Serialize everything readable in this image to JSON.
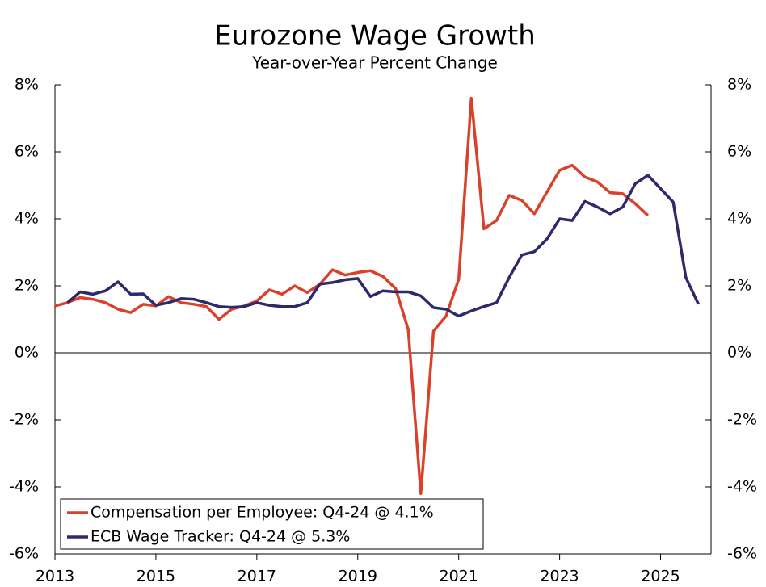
{
  "chart_data": {
    "type": "line",
    "title": "Eurozone Wage Growth",
    "subtitle": "Year-over-Year Percent Change",
    "xlim": [
      2013,
      2026
    ],
    "xticks": [
      2013,
      2015,
      2017,
      2019,
      2021,
      2023,
      2025
    ],
    "ylim": [
      -6,
      8
    ],
    "yticks": [
      {
        "value": -6,
        "label": "-6%"
      },
      {
        "value": -4,
        "label": "-4%"
      },
      {
        "value": -2,
        "label": "-2%"
      },
      {
        "value": 0,
        "label": "0%"
      },
      {
        "value": 2,
        "label": "2%"
      },
      {
        "value": 4,
        "label": "4%"
      },
      {
        "value": 6,
        "label": "6%"
      },
      {
        "value": 8,
        "label": "8%"
      }
    ],
    "y2lim": [
      -6,
      8
    ],
    "y2ticks": [
      {
        "value": -6,
        "label": "-6%"
      },
      {
        "value": -4,
        "label": "-4%"
      },
      {
        "value": -2,
        "label": "-2%"
      },
      {
        "value": 0,
        "label": "0%"
      },
      {
        "value": 2,
        "label": "2%"
      },
      {
        "value": 4,
        "label": "4%"
      },
      {
        "value": 6,
        "label": "6%"
      },
      {
        "value": 8,
        "label": "8%"
      }
    ],
    "grid": false,
    "legend": "lower left",
    "series": [
      {
        "name": "Compensation per Employee: Q4-24 @ 4.1%",
        "color": "#d9412b",
        "x": [
          2013.0,
          2013.25,
          2013.5,
          2013.75,
          2014.0,
          2014.25,
          2014.5,
          2014.75,
          2015.0,
          2015.25,
          2015.5,
          2015.75,
          2016.0,
          2016.25,
          2016.5,
          2016.75,
          2017.0,
          2017.25,
          2017.5,
          2017.75,
          2018.0,
          2018.25,
          2018.5,
          2018.75,
          2019.0,
          2019.25,
          2019.5,
          2019.75,
          2020.0,
          2020.25,
          2020.5,
          2020.75,
          2021.0,
          2021.25,
          2021.5,
          2021.75,
          2022.0,
          2022.25,
          2022.5,
          2022.75,
          2023.0,
          2023.25,
          2023.5,
          2023.75,
          2024.0,
          2024.25,
          2024.5,
          2024.75
        ],
        "values": [
          1.4,
          1.5,
          1.65,
          1.6,
          1.5,
          1.3,
          1.2,
          1.45,
          1.4,
          1.68,
          1.5,
          1.45,
          1.38,
          1.0,
          1.3,
          1.4,
          1.55,
          1.88,
          1.75,
          2.0,
          1.8,
          2.05,
          2.48,
          2.32,
          2.4,
          2.45,
          2.28,
          1.92,
          0.7,
          -4.2,
          0.65,
          1.1,
          2.2,
          7.6,
          3.7,
          3.95,
          4.7,
          4.55,
          4.15,
          4.8,
          5.45,
          5.6,
          5.25,
          5.1,
          4.78,
          4.75,
          4.45,
          4.1
        ]
      },
      {
        "name": "ECB Wage Tracker: Q4-24 @ 5.3%",
        "color": "#2d2a6b",
        "x": [
          2013.25,
          2013.5,
          2013.75,
          2014.0,
          2014.25,
          2014.5,
          2014.75,
          2015.0,
          2015.25,
          2015.5,
          2015.75,
          2016.0,
          2016.25,
          2016.5,
          2016.75,
          2017.0,
          2017.25,
          2017.5,
          2017.75,
          2018.0,
          2018.25,
          2018.5,
          2018.75,
          2019.0,
          2019.25,
          2019.5,
          2019.75,
          2020.0,
          2020.25,
          2020.5,
          2020.75,
          2021.0,
          2021.25,
          2021.5,
          2021.75,
          2022.0,
          2022.25,
          2022.5,
          2022.75,
          2023.0,
          2023.25,
          2023.5,
          2023.75,
          2024.0,
          2024.25,
          2024.5,
          2024.75,
          2025.0,
          2025.25,
          2025.5,
          2025.75
        ],
        "values": [
          1.5,
          1.82,
          1.75,
          1.85,
          2.12,
          1.75,
          1.76,
          1.42,
          1.5,
          1.62,
          1.6,
          1.5,
          1.38,
          1.36,
          1.38,
          1.5,
          1.42,
          1.38,
          1.38,
          1.5,
          2.05,
          2.1,
          2.18,
          2.22,
          1.68,
          1.85,
          1.82,
          1.82,
          1.7,
          1.35,
          1.3,
          1.1,
          1.25,
          1.38,
          1.5,
          2.25,
          2.92,
          3.02,
          3.4,
          4.0,
          3.95,
          4.52,
          4.35,
          4.15,
          4.35,
          5.05,
          5.3,
          4.9,
          4.5,
          2.25,
          1.45
        ]
      }
    ]
  }
}
